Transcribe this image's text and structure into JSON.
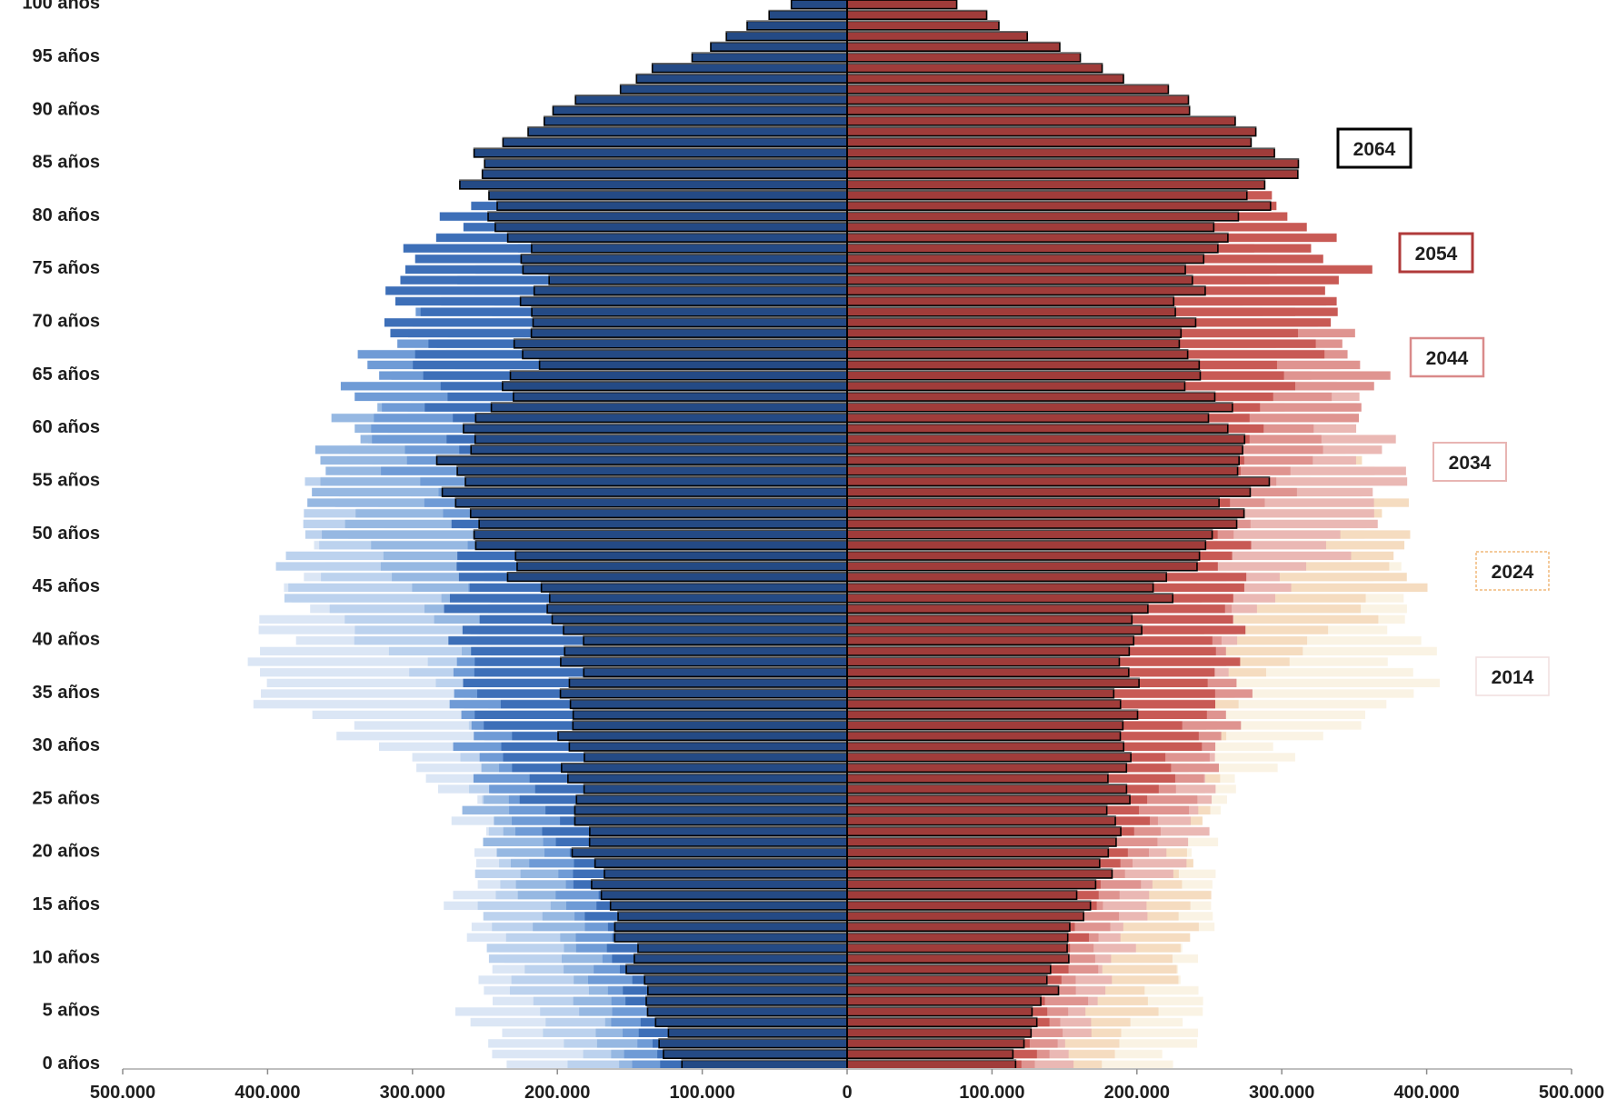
{
  "chart_data": {
    "type": "population-pyramid",
    "title": "",
    "xlabel": "",
    "ylabel": "",
    "xlim": [
      -500000,
      500000
    ],
    "x_ticks": [
      -500000,
      -400000,
      -300000,
      -200000,
      -100000,
      0,
      100000,
      200000,
      300000,
      400000,
      500000
    ],
    "x_tick_labels": [
      "500.000",
      "400.000",
      "300.000",
      "200.000",
      "100.000",
      "0",
      "100.000",
      "200.000",
      "300.000",
      "400.000",
      "500.000"
    ],
    "y_categories": [
      "0 años",
      "5 años",
      "10 años",
      "15 años",
      "20 años",
      "25 años",
      "30 años",
      "35 años",
      "40 años",
      "45 años",
      "50 años",
      "55 años",
      "60 años",
      "65 años",
      "70 años",
      "75 años",
      "80 años",
      "85 años",
      "90 años",
      "95 años",
      "100 años"
    ],
    "legend": [
      "2014",
      "2024",
      "2034",
      "2044",
      "2054",
      "2064"
    ],
    "series": [
      {
        "name": "2014",
        "left_color": "#dbe6f5",
        "right_color": "#faf3e4",
        "stroke": "none",
        "male": [
          235000,
          260000,
          240000,
          270000,
          250000,
          265000,
          320000,
          410000,
          400000,
          380000,
          345000,
          300000,
          240000,
          190000,
          150000,
          115000,
          80000,
          50000,
          25000,
          12000,
          4000
        ],
        "female": [
          225000,
          245000,
          230000,
          255000,
          240000,
          258000,
          310000,
          395000,
          390000,
          375000,
          345000,
          310000,
          265000,
          220000,
          185000,
          155000,
          120000,
          85000,
          50000,
          25000,
          10000
        ]
      },
      {
        "name": "2024",
        "left_color": "#bcd2ee",
        "right_color": "#f5dcc0",
        "stroke": "none",
        "male": [
          185000,
          215000,
          240000,
          250000,
          240000,
          250000,
          255000,
          265000,
          330000,
          385000,
          375000,
          355000,
          320000,
          270000,
          210000,
          160000,
          120000,
          80000,
          45000,
          20000,
          8000
        ],
        "female": [
          175000,
          205000,
          230000,
          240000,
          232000,
          245000,
          252000,
          262000,
          325000,
          385000,
          378000,
          362000,
          335000,
          295000,
          250000,
          210000,
          170000,
          125000,
          80000,
          40000,
          15000
        ]
      },
      {
        "name": "2034",
        "left_color": "#96b8e2",
        "right_color": "#eab8b4",
        "stroke": "none",
        "male": [
          160000,
          180000,
          195000,
          215000,
          240000,
          255000,
          245000,
          250000,
          260000,
          300000,
          345000,
          370000,
          345000,
          310000,
          255000,
          205000,
          150000,
          105000,
          65000,
          30000,
          10000
        ],
        "female": [
          150000,
          170000,
          185000,
          205000,
          232000,
          250000,
          244000,
          248000,
          258000,
          300000,
          350000,
          378000,
          360000,
          335000,
          295000,
          255000,
          210000,
          160000,
          110000,
          60000,
          22000
        ]
      },
      {
        "name": "2044",
        "left_color": "#6f9bd6",
        "right_color": "#df9490",
        "stroke": "none",
        "male": [
          145000,
          162000,
          178000,
          192000,
          212000,
          240000,
          260000,
          270000,
          255000,
          250000,
          260000,
          300000,
          325000,
          340000,
          300000,
          250000,
          190000,
          140000,
          90000,
          45000,
          15000
        ],
        "female": [
          135000,
          155000,
          170000,
          185000,
          205000,
          235000,
          258000,
          268000,
          255000,
          250000,
          262000,
          305000,
          335000,
          365000,
          330000,
          295000,
          250000,
          200000,
          140000,
          80000,
          30000
        ]
      },
      {
        "name": "2054",
        "left_color": "#3d6fb8",
        "right_color": "#c85a55",
        "stroke": "none",
        "male": [
          130000,
          145000,
          160000,
          175000,
          195000,
          215000,
          238000,
          255000,
          265000,
          270000,
          260000,
          255000,
          270000,
          290000,
          310000,
          310000,
          270000,
          200000,
          130000,
          70000,
          25000
        ],
        "female": [
          122000,
          137000,
          152000,
          168000,
          188000,
          210000,
          235000,
          253000,
          262000,
          270000,
          264000,
          260000,
          278000,
          305000,
          330000,
          345000,
          310000,
          255000,
          185000,
          115000,
          50000
        ]
      },
      {
        "name": "2064",
        "left_color": "#244a85",
        "right_color": "#a03c3a",
        "stroke": "#000000",
        "male": [
          120000,
          135000,
          148000,
          165000,
          180000,
          187000,
          192000,
          192000,
          190000,
          215000,
          255000,
          275000,
          260000,
          225000,
          220000,
          215000,
          245000,
          260000,
          200000,
          110000,
          40000
        ],
        "female": [
          115000,
          132000,
          148000,
          163000,
          183000,
          188000,
          192000,
          192000,
          195000,
          218000,
          258000,
          280000,
          265000,
          240000,
          230000,
          240000,
          270000,
          310000,
          250000,
          160000,
          75000
        ]
      }
    ],
    "grid": false,
    "legend_placement": "right"
  }
}
